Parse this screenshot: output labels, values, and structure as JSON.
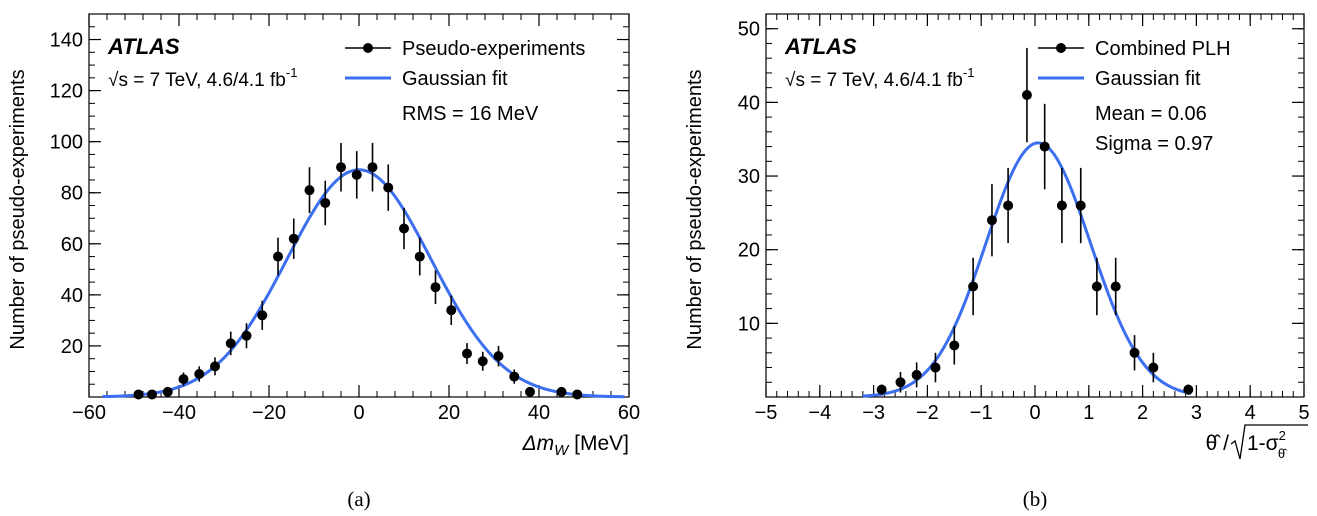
{
  "chart_data": [
    {
      "type": "scatter",
      "panel_caption": "(a)",
      "brand": "ATLAS",
      "energy_text": "s = 7 TeV, 4.6/4.1 fb",
      "energy_sqrt": "√",
      "energy_sup": "-1",
      "ylabel": "Number of pseudo-experiments",
      "xlabel_main": "Δm",
      "xlabel_sub": "W",
      "xlabel_unit": " [MeV]",
      "xlim": [
        -60,
        60
      ],
      "ylim": [
        0,
        150
      ],
      "xticks": [
        -60,
        -40,
        -20,
        0,
        20,
        40,
        60
      ],
      "yticks": [
        20,
        40,
        60,
        80,
        100,
        120,
        140
      ],
      "x_minor_step": 4,
      "y_minor_step": 5,
      "legend": {
        "placement": "top-right",
        "entries": [
          "Pseudo-experiments",
          "Gaussian fit"
        ]
      },
      "annotations": [
        "RMS = 16 MeV"
      ],
      "points": [
        {
          "x": -49,
          "y": 1,
          "err": 0
        },
        {
          "x": -46,
          "y": 1,
          "err": 0
        },
        {
          "x": -42.5,
          "y": 2,
          "err": 1.4
        },
        {
          "x": -39,
          "y": 7,
          "err": 2.6
        },
        {
          "x": -35.5,
          "y": 9,
          "err": 3
        },
        {
          "x": -32,
          "y": 12,
          "err": 3.5
        },
        {
          "x": -28.5,
          "y": 21,
          "err": 4.6
        },
        {
          "x": -25,
          "y": 24,
          "err": 4.9
        },
        {
          "x": -21.5,
          "y": 32,
          "err": 5.7
        },
        {
          "x": -18,
          "y": 55,
          "err": 7.4
        },
        {
          "x": -14.5,
          "y": 62,
          "err": 7.9
        },
        {
          "x": -11,
          "y": 81,
          "err": 9
        },
        {
          "x": -7.5,
          "y": 76,
          "err": 8.7
        },
        {
          "x": -4,
          "y": 90,
          "err": 9.5
        },
        {
          "x": -0.5,
          "y": 87,
          "err": 9.3
        },
        {
          "x": 3,
          "y": 90,
          "err": 9.5
        },
        {
          "x": 6.5,
          "y": 82,
          "err": 9.1
        },
        {
          "x": 10,
          "y": 66,
          "err": 8.1
        },
        {
          "x": 13.5,
          "y": 55,
          "err": 7.4
        },
        {
          "x": 17,
          "y": 43,
          "err": 6.6
        },
        {
          "x": 20.5,
          "y": 34,
          "err": 5.8
        },
        {
          "x": 24,
          "y": 17,
          "err": 4.1
        },
        {
          "x": 27.5,
          "y": 14,
          "err": 3.7
        },
        {
          "x": 31,
          "y": 16,
          "err": 4
        },
        {
          "x": 34.5,
          "y": 8,
          "err": 2.8
        },
        {
          "x": 38,
          "y": 2,
          "err": 1.4
        },
        {
          "x": 45,
          "y": 2,
          "err": 0
        },
        {
          "x": 48.5,
          "y": 1,
          "err": 0
        }
      ],
      "fit": {
        "amplitude": 89,
        "mean": 0,
        "sigma": 16,
        "xmin": -57,
        "xmax": 59
      },
      "marker_color": "#000000",
      "fit_color": "#3b6ff0"
    },
    {
      "type": "scatter",
      "panel_caption": "(b)",
      "brand": "ATLAS",
      "energy_text": "s = 7 TeV, 4.6/4.1 fb",
      "energy_sqrt": "√",
      "energy_sup": "-1",
      "ylabel": "Number of pseudo-experiments",
      "xlabel_main": "θ̂ / ",
      "xlabel_rad": "1-σ",
      "xlabel_rad_sup": "2",
      "xlabel_rad_sub": "θ̂",
      "xlim": [
        -5,
        5
      ],
      "ylim": [
        0,
        52
      ],
      "xticks": [
        -5,
        -4,
        -3,
        -2,
        -1,
        0,
        1,
        2,
        3,
        4,
        5
      ],
      "yticks": [
        10,
        20,
        30,
        40,
        50
      ],
      "x_minor_step": 0.2,
      "y_minor_step": 2,
      "legend": {
        "placement": "top-right",
        "entries": [
          "Combined PLH",
          "Gaussian fit"
        ]
      },
      "annotations": [
        "Mean = 0.06",
        "Sigma = 0.97"
      ],
      "points": [
        {
          "x": -2.85,
          "y": 1,
          "err": 0.7
        },
        {
          "x": -2.5,
          "y": 2,
          "err": 1.4
        },
        {
          "x": -2.2,
          "y": 3,
          "err": 1.7
        },
        {
          "x": -1.85,
          "y": 4,
          "err": 2
        },
        {
          "x": -1.5,
          "y": 7,
          "err": 2.6
        },
        {
          "x": -1.15,
          "y": 15,
          "err": 3.9
        },
        {
          "x": -0.8,
          "y": 24,
          "err": 4.9
        },
        {
          "x": -0.5,
          "y": 26,
          "err": 5.1
        },
        {
          "x": -0.15,
          "y": 41,
          "err": 6.4
        },
        {
          "x": 0.18,
          "y": 34,
          "err": 5.8
        },
        {
          "x": 0.5,
          "y": 26,
          "err": 5.1
        },
        {
          "x": 0.85,
          "y": 26,
          "err": 5.1
        },
        {
          "x": 1.15,
          "y": 15,
          "err": 3.9
        },
        {
          "x": 1.5,
          "y": 15,
          "err": 3.9
        },
        {
          "x": 1.85,
          "y": 6,
          "err": 2.4
        },
        {
          "x": 2.2,
          "y": 4,
          "err": 2
        },
        {
          "x": 2.85,
          "y": 1,
          "err": 0.7
        }
      ],
      "fit": {
        "amplitude": 34.5,
        "mean": 0.06,
        "sigma": 0.97,
        "xmin": -3.2,
        "xmax": 2.9
      },
      "marker_color": "#000000",
      "fit_color": "#3b6ff0"
    }
  ]
}
